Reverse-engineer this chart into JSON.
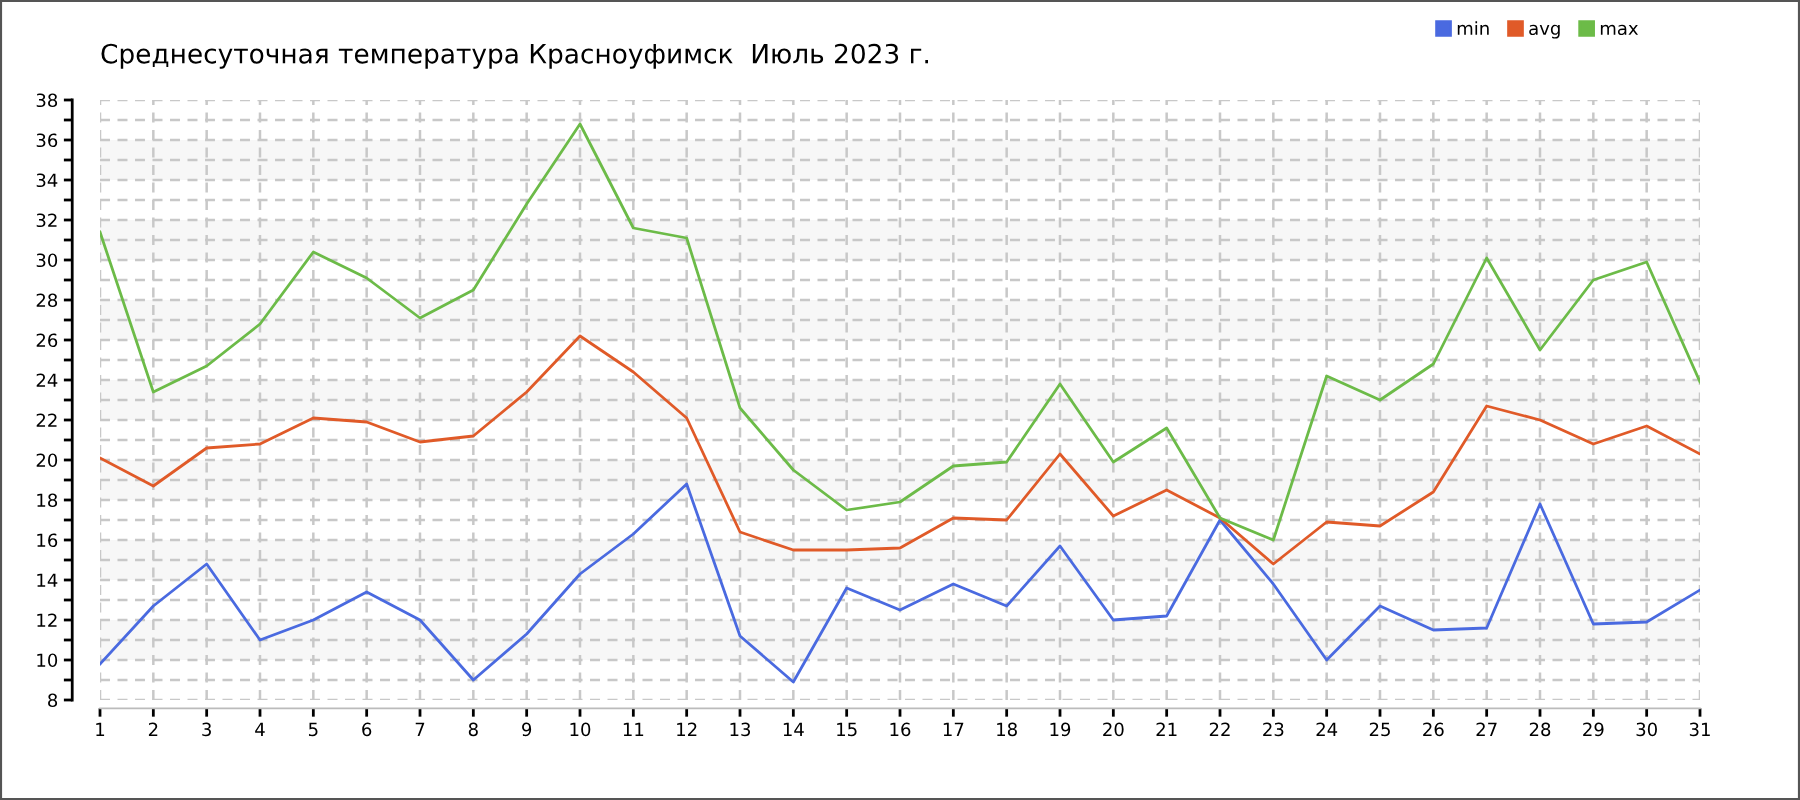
{
  "chart_data": {
    "type": "line",
    "title": "Среднесуточная температура Красноуфимск  Июль 2023 г.",
    "x": [
      1,
      2,
      3,
      4,
      5,
      6,
      7,
      8,
      9,
      10,
      11,
      12,
      13,
      14,
      15,
      16,
      17,
      18,
      19,
      20,
      21,
      22,
      23,
      24,
      25,
      26,
      27,
      28,
      29,
      30,
      31
    ],
    "series": [
      {
        "name": "min",
        "color": "#4a6ae0",
        "values": [
          9.8,
          12.7,
          14.8,
          11.0,
          12.0,
          13.4,
          12.0,
          9.0,
          11.3,
          14.3,
          16.3,
          18.8,
          11.2,
          8.9,
          13.6,
          12.5,
          13.8,
          12.7,
          15.7,
          12.0,
          12.2,
          17.0,
          13.8,
          10.0,
          12.7,
          11.5,
          11.6,
          17.8,
          11.8,
          11.9,
          13.5
        ]
      },
      {
        "name": "avg",
        "color": "#e05a28",
        "values": [
          20.1,
          18.7,
          20.6,
          20.8,
          22.1,
          21.9,
          20.9,
          21.2,
          23.4,
          26.2,
          24.4,
          22.1,
          16.4,
          15.5,
          15.5,
          15.6,
          17.1,
          17.0,
          20.3,
          17.2,
          18.5,
          17.1,
          14.8,
          16.9,
          16.7,
          18.4,
          22.7,
          22.0,
          20.8,
          21.7,
          20.3
        ]
      },
      {
        "name": "max",
        "color": "#6cbb48",
        "values": [
          31.4,
          23.4,
          24.7,
          26.8,
          30.4,
          29.1,
          27.1,
          28.5,
          32.8,
          36.8,
          31.6,
          31.1,
          22.6,
          19.5,
          17.5,
          17.9,
          19.7,
          19.9,
          23.8,
          19.9,
          21.6,
          17.1,
          16.0,
          24.2,
          23.0,
          24.8,
          30.1,
          25.5,
          29.0,
          29.9,
          23.9
        ]
      }
    ],
    "xlim": [
      1,
      31
    ],
    "xticks": [
      1,
      2,
      3,
      4,
      5,
      6,
      7,
      8,
      9,
      10,
      11,
      12,
      13,
      14,
      15,
      16,
      17,
      18,
      19,
      20,
      21,
      22,
      23,
      24,
      25,
      26,
      27,
      28,
      29,
      30,
      31
    ],
    "ylim": [
      8,
      38
    ],
    "yticks": [
      8,
      {
        "value": 9,
        "label": null
      },
      10,
      {
        "value": 11,
        "label": null
      },
      12,
      {
        "value": 13,
        "label": null
      },
      14,
      {
        "value": 15,
        "label": null
      },
      16,
      {
        "value": 17,
        "label": null
      },
      18,
      {
        "value": 19,
        "label": null
      },
      20,
      {
        "value": 21,
        "label": null
      },
      22,
      {
        "value": 23,
        "label": null
      },
      24,
      {
        "value": 25,
        "label": null
      },
      26,
      {
        "value": 27,
        "label": null
      },
      28,
      {
        "value": 29,
        "label": null
      },
      30,
      {
        "value": 31,
        "label": null
      },
      32,
      {
        "value": 33,
        "label": null
      },
      34,
      {
        "value": 35,
        "label": null
      },
      36,
      {
        "value": 37,
        "label": null
      },
      38
    ],
    "bands": [
      {
        "axis": "y",
        "from": 10,
        "to": 12,
        "color": "#f7f7f7"
      },
      {
        "axis": "y",
        "from": 14,
        "to": 16,
        "color": "#f7f7f7"
      },
      {
        "axis": "y",
        "from": 18,
        "to": 20,
        "color": "#f7f7f7"
      },
      {
        "axis": "y",
        "from": 22,
        "to": 24,
        "color": "#f7f7f7"
      },
      {
        "axis": "y",
        "from": 26,
        "to": 28,
        "color": "#f7f7f7"
      },
      {
        "axis": "y",
        "from": 30,
        "to": 32,
        "color": "#f7f7f7"
      },
      {
        "axis": "y",
        "from": 34,
        "to": 36,
        "color": "#f7f7f7"
      }
    ],
    "grid": true,
    "legend": "top right",
    "line_style": "solid"
  }
}
